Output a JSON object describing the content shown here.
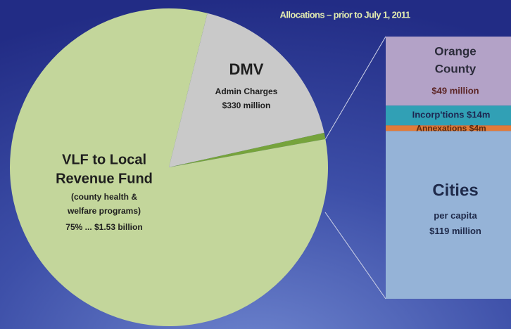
{
  "chart_data": {
    "type": "pie-of-bar",
    "title": "Allocations – prior to July 1, 2011",
    "pie": {
      "labels": [
        [
          "VLF to Local",
          "Revenue Fund"
        ],
        [
          "DMV"
        ],
        null
      ],
      "notes": [
        [
          "(county health &",
          "welfare programs)"
        ],
        [
          "Admin Charges"
        ],
        null
      ],
      "values": [
        1530,
        330,
        12
      ],
      "value_labels": [
        "75% ... $1.53 billion",
        "$330 million",
        null
      ],
      "colors": [
        "#c3d69b",
        "#c9c9c9",
        "#76a33c"
      ]
    },
    "bar": {
      "labels": [
        [
          "Orange",
          "County"
        ],
        [
          "Incorp'tions"
        ],
        [
          "Annexations"
        ],
        [
          "Cities"
        ]
      ],
      "notes": [
        null,
        null,
        null,
        [
          "per capita"
        ]
      ],
      "values": [
        49,
        14,
        4,
        119
      ],
      "value_labels": [
        "$49 million",
        "$14m",
        "$4m",
        "$119 million"
      ],
      "colors": [
        "#b3a2c7",
        "#31a0b5",
        "#e07b39",
        "#95b3d7"
      ]
    }
  }
}
